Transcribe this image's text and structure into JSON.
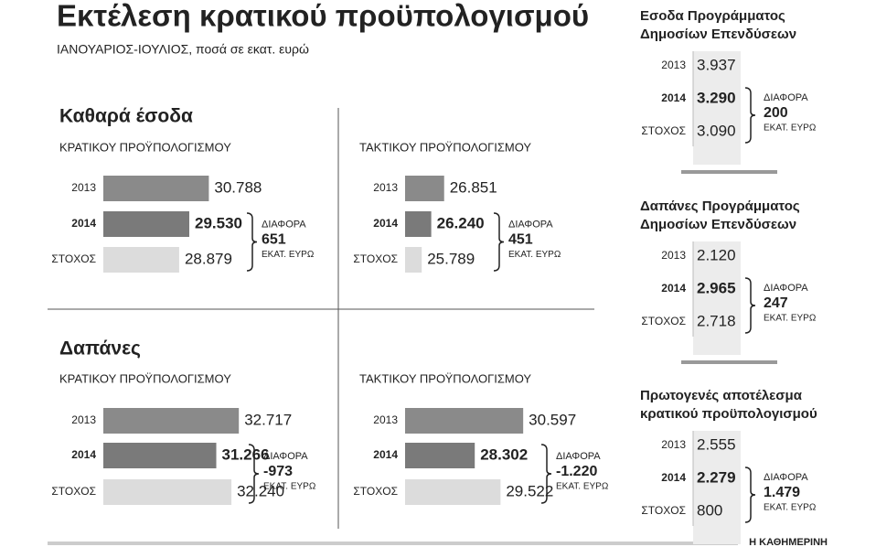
{
  "title": "Εκτέλεση κρατικού προϋπολογισμού",
  "subtitle": "ΙΑΝΟΥΑΡΙΟΣ-ΙΟΥΛΙΟΣ, ποσά σε εκατ. ευρώ",
  "sections": [
    {
      "title": "Καθαρά έσοδα"
    },
    {
      "title": "Δαπάνες"
    }
  ],
  "chart_data": [
    {
      "type": "bar",
      "subtitle": "ΚΡΑΤΙΚΟΥ ΠΡΟΫΠΟΛΟΓΙΣΜΟΥ",
      "categories": [
        "2013",
        "2014",
        "ΣΤΟΧΟΣ"
      ],
      "values": [
        30788,
        29530,
        28879
      ],
      "value_labels": [
        "30.788",
        "29.530",
        "28.879"
      ],
      "colors": [
        "#8a8a8a",
        "#7a7a7a",
        "#dcdcdc"
      ],
      "xlim": [
        24000,
        34000
      ],
      "annotation": {
        "label": "ΔΙΑΦΟΡΑ",
        "value": "651",
        "unit": "ΕΚΑΤ. ΕΥΡΩ"
      }
    },
    {
      "type": "bar",
      "subtitle": "ΤΑΚΤΙΚΟΥ ΠΡΟΫΠΟΛΟΓΙΣΜΟΥ",
      "categories": [
        "2013",
        "2014",
        "ΣΤΟΧΟΣ"
      ],
      "values": [
        26851,
        26240,
        25789
      ],
      "value_labels": [
        "26.851",
        "26.240",
        "25.789"
      ],
      "colors": [
        "#8a8a8a",
        "#7a7a7a",
        "#dcdcdc"
      ],
      "xlim": [
        25000,
        31500
      ],
      "annotation": {
        "label": "ΔΙΑΦΟΡΑ",
        "value": "451",
        "unit": "ΕΚΑΤ. ΕΥΡΩ"
      }
    },
    {
      "type": "bar",
      "subtitle": "ΚΡΑΤΙΚΟΥ ΠΡΟΫΠΟΛΟΓΙΣΜΟΥ",
      "categories": [
        "2013",
        "2014",
        "ΣΤΟΧΟΣ"
      ],
      "values": [
        32717,
        31266,
        32240
      ],
      "value_labels": [
        "32.717",
        "31.266",
        "32.240"
      ],
      "colors": [
        "#8a8a8a",
        "#7a7a7a",
        "#dcdcdc"
      ],
      "xlim": [
        24000,
        34000
      ],
      "annotation": {
        "label": "ΔΙΑΦΟΡΑ",
        "value": "-973",
        "unit": "ΕΚΑΤ. ΕΥΡΩ"
      }
    },
    {
      "type": "bar",
      "subtitle": "ΤΑΚΤΙΚΟΥ ΠΡΟΫΠΟΛΟΓΙΣΜΟΥ",
      "categories": [
        "2013",
        "2014",
        "ΣΤΟΧΟΣ"
      ],
      "values": [
        30597,
        28302,
        29522
      ],
      "value_labels": [
        "30.597",
        "28.302",
        "29.522"
      ],
      "colors": [
        "#8a8a8a",
        "#7a7a7a",
        "#dcdcdc"
      ],
      "xlim": [
        25000,
        31500
      ],
      "annotation": {
        "label": "ΔΙΑΦΟΡΑ",
        "value": "-1.220",
        "unit": "ΕΚΑΤ. ΕΥΡΩ"
      }
    }
  ],
  "side_tables": [
    {
      "title": [
        "Εσοδα Προγράμματος",
        "Δημοσίων Επενδύσεων"
      ],
      "rows": [
        [
          "2013",
          "3.937"
        ],
        [
          "2014",
          "3.290"
        ],
        [
          "ΣΤΟΧΟΣ",
          "3.090"
        ]
      ],
      "annotation": {
        "label": "ΔΙΑΦΟΡΑ",
        "value": "200",
        "unit": "ΕΚΑΤ. ΕΥΡΩ"
      }
    },
    {
      "title": [
        "Δαπάνες Προγράμματος",
        "Δημοσίων Επενδύσεων"
      ],
      "rows": [
        [
          "2013",
          "2.120"
        ],
        [
          "2014",
          "2.965"
        ],
        [
          "ΣΤΟΧΟΣ",
          "2.718"
        ]
      ],
      "annotation": {
        "label": "ΔΙΑΦΟΡΑ",
        "value": "247",
        "unit": "ΕΚΑΤ. ΕΥΡΩ"
      }
    },
    {
      "title": [
        "Πρωτογενές αποτέλεσμα",
        "κρατικού προϋπολογισμού"
      ],
      "rows": [
        [
          "2013",
          "2.555"
        ],
        [
          "2014",
          "2.279"
        ],
        [
          "ΣΤΟΧΟΣ",
          "800"
        ]
      ],
      "annotation": {
        "label": "ΔΙΑΦΟΡΑ",
        "value": "1.479",
        "unit": "ΕΚΑΤ. ΕΥΡΩ"
      }
    }
  ],
  "source": "Η ΚΑΘΗΜΕΡΙΝΗ"
}
